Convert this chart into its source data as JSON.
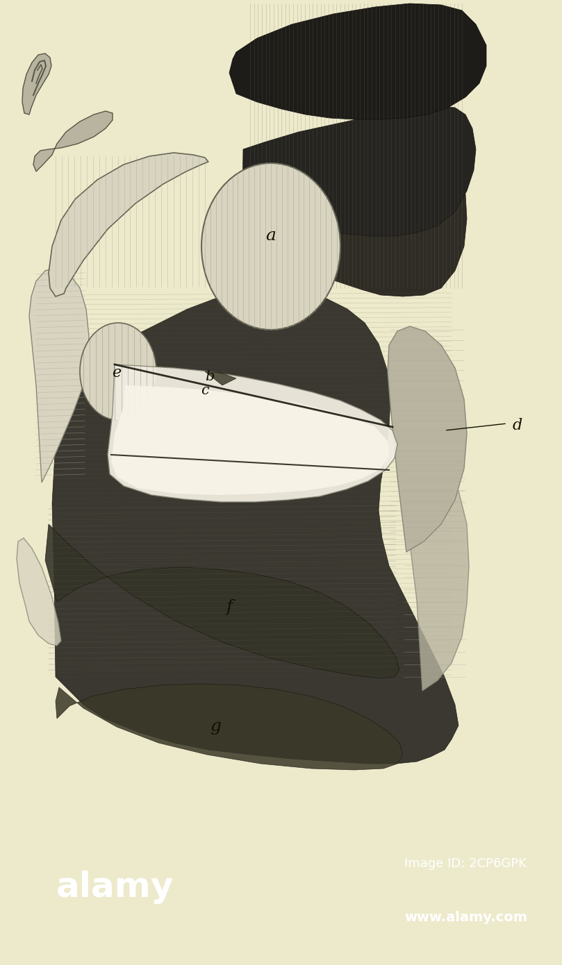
{
  "background_color": "#edeacc",
  "alamy_bar_color": "#000000",
  "alamy_text": "alamy",
  "alamy_id_text": "Image ID: 2CP6GPK",
  "alamy_url_text": "www.alamy.com",
  "figsize": [
    8.09,
    13.9
  ],
  "dpi": 100,
  "image_bg": "#edeacc",
  "dark_body": "#3a3830",
  "mid_gray": "#6a6858",
  "light_gray": "#b8b4a0",
  "very_light": "#d8d4c0",
  "white_ish": "#f0ece0",
  "label_fontsize": 16,
  "label_color": "#111100"
}
